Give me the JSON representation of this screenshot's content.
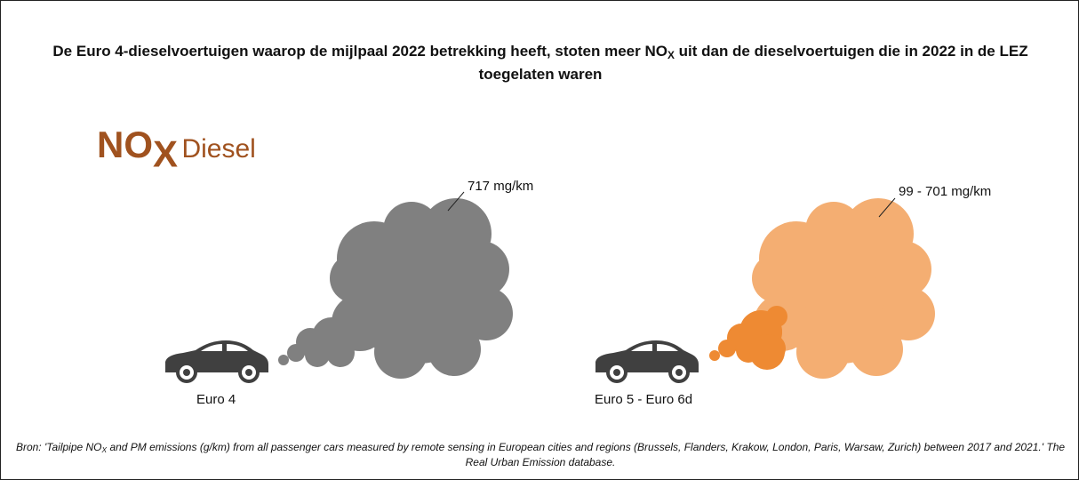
{
  "title": {
    "part1": "De Euro 4-dieselvoertuigen waarop de mijlpaal 2022 betrekking heeft, stoten meer NO",
    "sub": "X",
    "part2": " uit dan de dieselvoertuigen die in 2022 in de LEZ toegelaten waren"
  },
  "heading": {
    "main": "NO",
    "sub": "X",
    "rest": "Diesel"
  },
  "groups": [
    {
      "label": "Euro 4",
      "value_label": "717 mg/km"
    },
    {
      "label": "Euro 5 - Euro 6d",
      "value_label": "99 - 701 mg/km"
    }
  ],
  "source": {
    "part1": "Bron: 'Tailpipe NO",
    "sub": "X",
    "part2": " and PM emissions (g/km) from all passenger cars measured by remote sensing in European cities and regions (Brussels, Flanders, Krakow, London, Paris, Warsaw, Zurich) between 2017 and 2021.' The Real Urban Emission database."
  }
}
